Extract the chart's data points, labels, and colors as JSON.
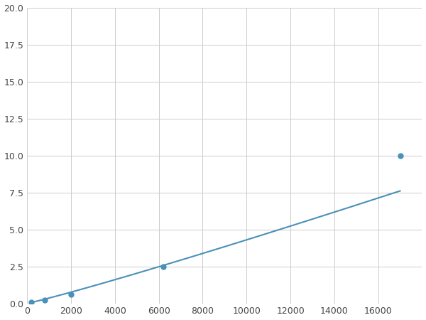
{
  "x_points": [
    200,
    500,
    800,
    2000,
    6200,
    17000
  ],
  "y_points": [
    0.1,
    0.15,
    0.2,
    0.6,
    2.5,
    10.0
  ],
  "marker_x": [
    200,
    800,
    2000,
    6200,
    17000
  ],
  "marker_y": [
    0.1,
    0.2,
    0.6,
    2.5,
    10.0
  ],
  "line_color": "#4a90b8",
  "marker_color": "#4a90b8",
  "marker_size": 5,
  "xlim": [
    0,
    18000
  ],
  "ylim": [
    0,
    20.0
  ],
  "yticks": [
    0.0,
    2.5,
    5.0,
    7.5,
    10.0,
    12.5,
    15.0,
    17.5,
    20.0
  ],
  "xticks": [
    0,
    2000,
    4000,
    6000,
    8000,
    10000,
    12000,
    14000,
    16000
  ],
  "grid_color": "#cccccc",
  "background_color": "#ffffff",
  "figure_background": "#ffffff"
}
